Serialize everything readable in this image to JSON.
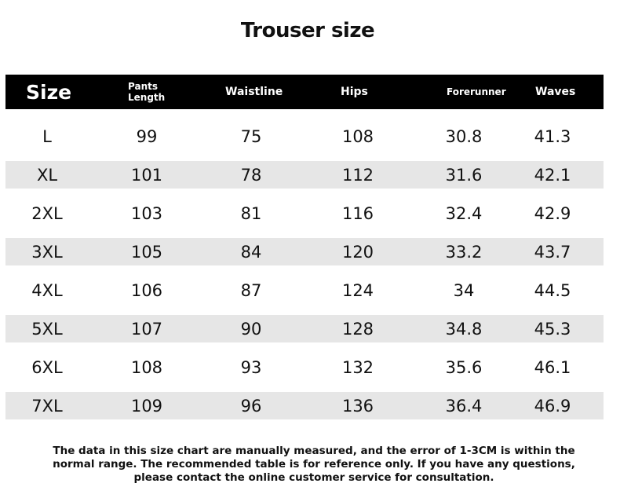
{
  "title": "Trouser size",
  "headers": [
    "Size",
    "Pants Length",
    "Waistline",
    "Hips",
    "Forerunner",
    "Waves"
  ],
  "header_lines": {
    "pants_1": "Pants",
    "pants_2": "Length"
  },
  "rows": [
    [
      "L",
      "99",
      "75",
      "108",
      "30.8",
      "41.3"
    ],
    [
      "XL",
      "101",
      "78",
      "112",
      "31.6",
      "42.1"
    ],
    [
      "2XL",
      "103",
      "81",
      "116",
      "32.4",
      "42.9"
    ],
    [
      "3XL",
      "105",
      "84",
      "120",
      "33.2",
      "43.7"
    ],
    [
      "4XL",
      "106",
      "87",
      "124",
      "34",
      "44.5"
    ],
    [
      "5XL",
      "107",
      "90",
      "128",
      "34.8",
      "45.3"
    ],
    [
      "6XL",
      "108",
      "93",
      "132",
      "35.6",
      "46.1"
    ],
    [
      "7XL",
      "109",
      "96",
      "136",
      "36.4",
      "46.9"
    ]
  ],
  "note": "The data in this size chart are manually measured, and the error of 1-3CM is within the normal range. The recommended table is for reference only. If you have any questions, please contact the online customer service for consultation.",
  "colors": {
    "header_bg": "#000000",
    "alt_row_bg": "#e6e6e6"
  }
}
